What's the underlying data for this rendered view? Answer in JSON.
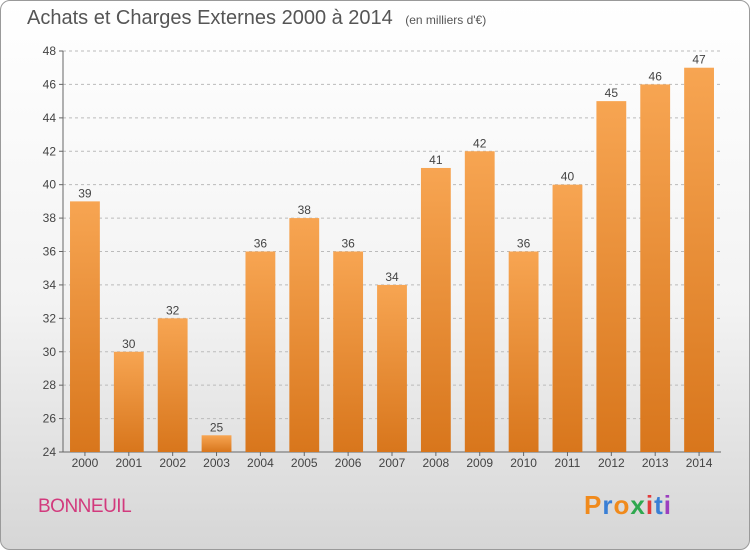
{
  "chart_data": {
    "type": "bar",
    "title": "Achats et Charges Externes 2000 à 2014",
    "subtitle": "(en milliers d'€)",
    "categories": [
      "2000",
      "2001",
      "2002",
      "2003",
      "2004",
      "2005",
      "2006",
      "2007",
      "2008",
      "2009",
      "2010",
      "2011",
      "2012",
      "2013",
      "2014"
    ],
    "values": [
      39,
      30,
      32,
      25,
      36,
      38,
      36,
      34,
      41,
      42,
      36,
      40,
      45,
      46,
      47
    ],
    "ylim": [
      24,
      48
    ],
    "yticks": [
      24,
      26,
      28,
      30,
      32,
      34,
      36,
      38,
      40,
      42,
      44,
      46,
      48
    ],
    "grid": true,
    "colors": {
      "bar_top": "#f7a552",
      "bar_bottom": "#d8761c",
      "grid": "#bbbbbb"
    }
  },
  "footer": {
    "place_name": "BONNEUIL",
    "logo_letters": [
      "P",
      "r",
      "o",
      "x",
      "i",
      "t",
      "i"
    ],
    "logo_colors": [
      "#f08a1c",
      "#3a7fd5",
      "#f08a1c",
      "#2fa84f",
      "#e23b3b",
      "#3a7fd5",
      "#9c3fbf"
    ]
  }
}
